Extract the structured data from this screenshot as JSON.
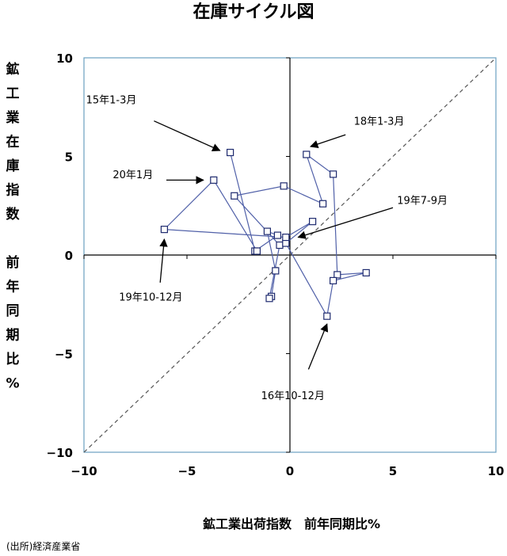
{
  "chart_data": {
    "type": "scatter",
    "title": "在庫サイクル図",
    "xlabel": "鉱工業出荷指数　前年同期比%",
    "ylabel_lines": [
      "鉱",
      "工",
      "業",
      "在",
      "庫",
      "指",
      "数",
      "",
      "前",
      "年",
      "同",
      "期",
      "比",
      "%"
    ],
    "xlim": [
      -10,
      10
    ],
    "ylim": [
      -10,
      10
    ],
    "x_ticks": [
      -10,
      -5,
      0,
      5,
      10
    ],
    "y_ticks": [
      -10,
      -5,
      0,
      5,
      10
    ],
    "x_tick_labels": [
      "−10",
      "−5",
      "0",
      "5",
      "10"
    ],
    "y_tick_labels": [
      "−10",
      "−5",
      "0",
      "5",
      "10"
    ],
    "grid": false,
    "diagonal_reference": "y = x (dashed)",
    "series": [
      {
        "marker": "hollow-square",
        "color": "#5060a8",
        "points": [
          {
            "x": -2.9,
            "y": 5.2
          },
          {
            "x": -1.7,
            "y": 0.2
          },
          {
            "x": -0.6,
            "y": 1.0
          },
          {
            "x": -1.1,
            "y": 1.2
          },
          {
            "x": -0.7,
            "y": -0.8
          },
          {
            "x": -0.9,
            "y": -2.1
          },
          {
            "x": -1.0,
            "y": -2.2
          },
          {
            "x": -0.5,
            "y": 0.5
          },
          {
            "x": -2.7,
            "y": 3.0
          },
          {
            "x": -0.3,
            "y": 3.5
          },
          {
            "x": 1.6,
            "y": 2.6
          },
          {
            "x": 0.8,
            "y": 5.1
          },
          {
            "x": 2.1,
            "y": 4.1
          },
          {
            "x": 2.3,
            "y": -1.0
          },
          {
            "x": 3.7,
            "y": -0.9
          },
          {
            "x": 2.1,
            "y": -1.3
          },
          {
            "x": 1.8,
            "y": -3.1
          },
          {
            "x": -0.2,
            "y": 0.6
          },
          {
            "x": 1.1,
            "y": 1.7
          },
          {
            "x": -0.2,
            "y": 0.9
          },
          {
            "x": -6.1,
            "y": 1.3
          },
          {
            "x": -3.7,
            "y": 3.8
          },
          {
            "x": -1.6,
            "y": 0.2
          }
        ]
      }
    ],
    "annotations": [
      {
        "text": "15年1-3月",
        "label_x": -9.9,
        "label_y": 7.7,
        "arrow_from": [
          -6.6,
          6.8
        ],
        "arrow_to": [
          -3.4,
          5.3
        ]
      },
      {
        "text": "18年1-3月",
        "label_x": 3.1,
        "label_y": 6.6,
        "arrow_from": [
          2.7,
          6.1
        ],
        "arrow_to": [
          1.0,
          5.5
        ]
      },
      {
        "text": "20年1月",
        "label_x": -8.6,
        "label_y": 3.9,
        "arrow_from": [
          -6.0,
          3.8
        ],
        "arrow_to": [
          -4.2,
          3.8
        ]
      },
      {
        "text": "19年7-9月",
        "label_x": 5.2,
        "label_y": 2.6,
        "arrow_from": [
          5.0,
          2.4
        ],
        "arrow_to": [
          0.4,
          0.9
        ]
      },
      {
        "text": "19年10-12月",
        "label_x": -8.3,
        "label_y": -2.3,
        "arrow_from": [
          -6.3,
          -1.4
        ],
        "arrow_to": [
          -6.1,
          0.8
        ]
      },
      {
        "text": "16年10-12月",
        "label_x": -1.4,
        "label_y": -7.3,
        "arrow_from": [
          0.9,
          -5.8
        ],
        "arrow_to": [
          1.8,
          -3.5
        ]
      }
    ],
    "source": "(出所)経済産業省"
  }
}
